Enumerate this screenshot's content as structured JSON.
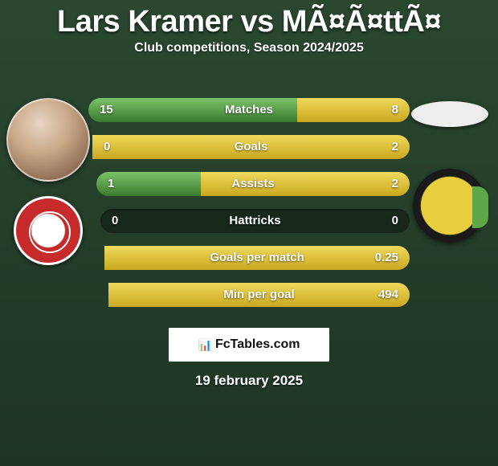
{
  "title": "Lars Kramer vs MÃ¤Ã¤ttÃ¤",
  "subtitle": "Club competitions, Season 2024/2025",
  "date": "19 february 2025",
  "branding": "FcTables.com",
  "colors": {
    "left_bar": "#3a7a2e",
    "right_bar": "#c9a81f",
    "bg_top": "#2a4730",
    "bg_bottom": "#1e3524"
  },
  "rows": [
    {
      "label": "Matches",
      "left": "15",
      "right": "8",
      "lw": 260,
      "rw": 140
    },
    {
      "label": "Goals",
      "left": "0",
      "right": "2",
      "lw": 0,
      "rw": 400
    },
    {
      "label": "Assists",
      "left": "1",
      "right": "2",
      "lw": 133,
      "rw": 267
    },
    {
      "label": "Hattricks",
      "left": "0",
      "right": "0",
      "lw": 0,
      "rw": 0
    },
    {
      "label": "Goals per match",
      "left": "",
      "right": "0.25",
      "lw": 0,
      "rw": 400
    },
    {
      "label": "Min per goal",
      "left": "",
      "right": "494",
      "lw": 0,
      "rw": 400
    }
  ]
}
